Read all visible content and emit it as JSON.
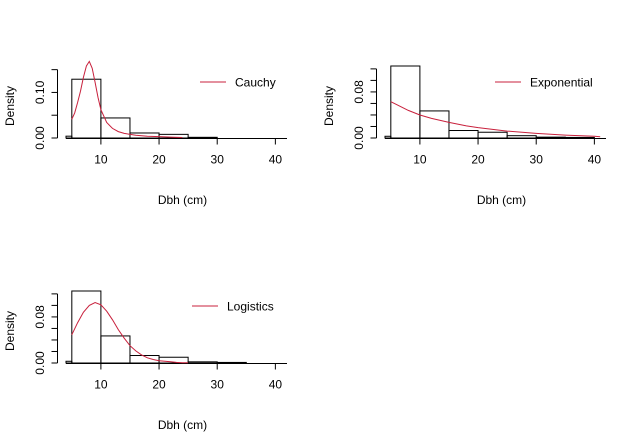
{
  "chart_data": [
    {
      "type": "bar",
      "subtype": "histogram-with-density-curve",
      "xlabel": "Dbh (cm)",
      "ylabel": "Density",
      "xlim": [
        4,
        42
      ],
      "ylim": [
        0,
        0.158
      ],
      "xticks": [
        10,
        20,
        30,
        40
      ],
      "yticks": [
        0.0,
        0.05,
        0.1,
        0.15
      ],
      "ytick_labels": [
        "0.00",
        "",
        "0.10",
        ""
      ],
      "bins": [
        {
          "from": 4,
          "to": 5,
          "density": 0.004
        },
        {
          "from": 5,
          "to": 10,
          "density": 0.129
        },
        {
          "from": 10,
          "to": 15,
          "density": 0.044
        },
        {
          "from": 15,
          "to": 20,
          "density": 0.011
        },
        {
          "from": 20,
          "to": 25,
          "density": 0.008
        },
        {
          "from": 25,
          "to": 30,
          "density": 0.0015
        }
      ],
      "series": [
        {
          "name": "Cauchy",
          "color": "#c8203c",
          "x": [
            5,
            5.5,
            6,
            6.5,
            7,
            7.5,
            8,
            8.5,
            9,
            9.5,
            10,
            11,
            12,
            13,
            14,
            16,
            18,
            20,
            22,
            24
          ],
          "y": [
            0.041,
            0.055,
            0.078,
            0.103,
            0.133,
            0.158,
            0.168,
            0.153,
            0.122,
            0.089,
            0.062,
            0.034,
            0.021,
            0.014,
            0.01,
            0.006,
            0.004,
            0.003,
            0.002,
            0.001
          ]
        }
      ],
      "legend": "top-right",
      "grid": false
    },
    {
      "type": "bar",
      "subtype": "histogram-with-density-curve",
      "xlabel": "Dbh (cm)",
      "ylabel": "Density",
      "xlim": [
        4,
        42
      ],
      "ylim": [
        0,
        0.125
      ],
      "xticks": [
        10,
        20,
        30,
        40
      ],
      "yticks": [
        0.0,
        0.02,
        0.04,
        0.06,
        0.08,
        0.1,
        0.12
      ],
      "ytick_labels": [
        "0.00",
        "",
        "",
        "",
        "0.08",
        "",
        ""
      ],
      "bins": [
        {
          "from": 4,
          "to": 5,
          "density": 0.003
        },
        {
          "from": 5,
          "to": 10,
          "density": 0.125
        },
        {
          "from": 10,
          "to": 15,
          "density": 0.047
        },
        {
          "from": 15,
          "to": 20,
          "density": 0.013
        },
        {
          "from": 20,
          "to": 25,
          "density": 0.01
        },
        {
          "from": 25,
          "to": 30,
          "density": 0.004
        },
        {
          "from": 30,
          "to": 35,
          "density": 0.0015
        },
        {
          "from": 35,
          "to": 40,
          "density": 0.001
        }
      ],
      "series": [
        {
          "name": "Exponential",
          "color": "#c8203c",
          "x": [
            5,
            6,
            8,
            10,
            12,
            15,
            18,
            20,
            25,
            30,
            35,
            40,
            41
          ],
          "y": [
            0.063,
            0.058,
            0.048,
            0.04,
            0.034,
            0.027,
            0.021,
            0.018,
            0.012,
            0.008,
            0.005,
            0.003,
            0.002
          ]
        }
      ],
      "legend": "top-right",
      "grid": false
    },
    {
      "type": "bar",
      "subtype": "histogram-with-density-curve",
      "xlabel": "Dbh (cm)",
      "ylabel": "Density",
      "xlim": [
        4,
        42
      ],
      "ylim": [
        0,
        0.125
      ],
      "xticks": [
        10,
        20,
        30,
        40
      ],
      "yticks": [
        0.0,
        0.02,
        0.04,
        0.06,
        0.08,
        0.1,
        0.12
      ],
      "ytick_labels": [
        "0.00",
        "",
        "",
        "",
        "0.08",
        "",
        ""
      ],
      "bins": [
        {
          "from": 4,
          "to": 5,
          "density": 0.003
        },
        {
          "from": 5,
          "to": 10,
          "density": 0.125
        },
        {
          "from": 10,
          "to": 15,
          "density": 0.047
        },
        {
          "from": 15,
          "to": 20,
          "density": 0.013
        },
        {
          "from": 20,
          "to": 25,
          "density": 0.01
        },
        {
          "from": 25,
          "to": 30,
          "density": 0.002
        },
        {
          "from": 30,
          "to": 35,
          "density": 0.001
        }
      ],
      "series": [
        {
          "name": "Logistics",
          "color": "#c8203c",
          "x": [
            5,
            6,
            7,
            8,
            9,
            10,
            11,
            12,
            13,
            14,
            15,
            16,
            17,
            18,
            19,
            20,
            21,
            22,
            23,
            24,
            25
          ],
          "y": [
            0.049,
            0.07,
            0.088,
            0.1,
            0.105,
            0.101,
            0.09,
            0.075,
            0.058,
            0.043,
            0.03,
            0.021,
            0.014,
            0.009,
            0.006,
            0.004,
            0.003,
            0.002,
            0.001,
            0.0006,
            0.0004
          ]
        }
      ],
      "legend": "top-right",
      "grid": false
    }
  ]
}
